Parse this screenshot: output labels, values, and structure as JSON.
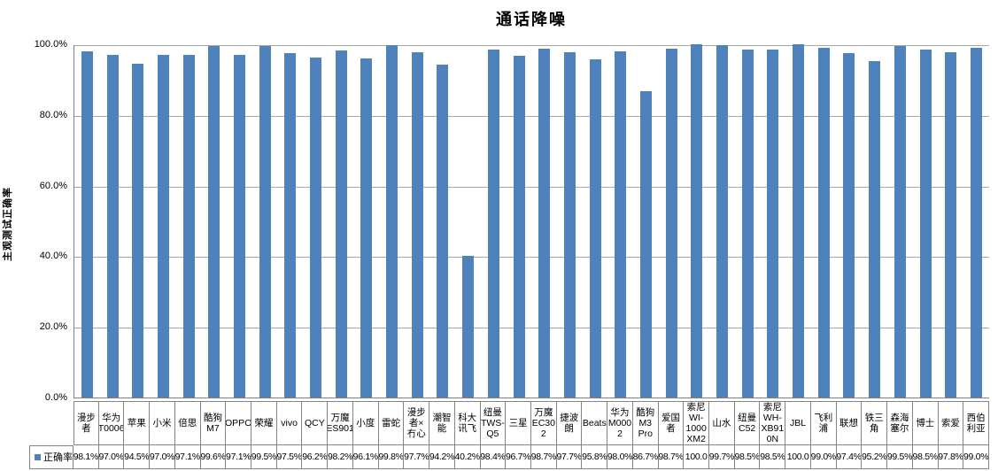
{
  "title": "通话降噪",
  "y_axis": {
    "title": "主观测试正确率",
    "tick_labels": [
      "100.0%",
      "80.0%",
      "60.0%",
      "40.0%",
      "20.0%",
      "0.0%"
    ]
  },
  "legend": {
    "series_label": "正确率"
  },
  "colors": {
    "bar": "#4f81bd",
    "gridline": "#a6a6a6",
    "axis_line": "#808080",
    "table_border": "#858585",
    "text": "#000000"
  },
  "chart_data": {
    "type": "bar",
    "title": "通话降噪",
    "xlabel": "",
    "ylabel": "主观测试正确率",
    "ylim": [
      0,
      100
    ],
    "y_tick_step": 20,
    "y_tick_format": "percent",
    "grid": true,
    "legend_position": "data-table-bottom-left",
    "categories": [
      "漫步者",
      "华为T0006",
      "苹果",
      "小米",
      "倍思",
      "酷狗M7",
      "OPPO",
      "荣耀",
      "vivo",
      "QCY",
      "万魔ES901",
      "小度",
      "雷蛇",
      "漫步者×冇心",
      "潮智能",
      "科大讯飞",
      "纽曼TWS-Q5",
      "三星",
      "万魔EC302",
      "捷波朗",
      "Beats",
      "华为M0002",
      "酷狗M3 Pro",
      "爱国者",
      "索尼WI-1000XM2",
      "山水",
      "纽曼C52",
      "索尼WH-XB910N",
      "JBL",
      "飞利浦",
      "联想",
      "铁三角",
      "森海塞尔",
      "博士",
      "索爱",
      "西伯利亚"
    ],
    "series": [
      {
        "name": "正确率",
        "values": [
          98.1,
          97.0,
          94.5,
          97.0,
          97.1,
          99.6,
          97.1,
          99.5,
          97.5,
          96.2,
          98.2,
          96.1,
          99.8,
          97.7,
          94.2,
          40.2,
          98.4,
          96.7,
          98.7,
          97.7,
          95.8,
          98.0,
          86.7,
          98.7,
          100.0,
          99.7,
          98.5,
          98.5,
          100.0,
          99.0,
          97.4,
          95.2,
          99.5,
          98.5,
          97.8,
          99.0
        ]
      }
    ]
  },
  "table": {
    "header_labels_display": [
      "漫步\n者",
      "华为\nT0006",
      "苹果",
      "小米",
      "倍思",
      "酷狗\nM7",
      "OPPO",
      "荣耀",
      "vivo",
      "QCY",
      "万魔\nES901",
      "小度",
      "雷蛇",
      "漫步\n者×\n冇心",
      "潮智\n能",
      "科大\n讯飞",
      "纽曼\nTWS-\nQ5",
      "三星",
      "万魔\nEC30\n2",
      "捷波\n朗",
      "Beats",
      "华为\nM000\n2",
      "酷狗\nM3\nPro",
      "爱国\n者",
      "索尼\nWI-\n1000\nXM2",
      "山水",
      "纽曼\nC52",
      "索尼\nWH-\nXB91\n0N",
      "JBL",
      "飞利\n浦",
      "联想",
      "铁三\n角",
      "森海\n塞尔",
      "博士",
      "索爱",
      "西伯\n利亚"
    ],
    "values_display": [
      "98.1%",
      "97.0%",
      "94.5%",
      "97.0%",
      "97.1%",
      "99.6%",
      "97.1%",
      "99.5%",
      "97.5%",
      "96.2%",
      "98.2%",
      "96.1%",
      "99.8%",
      "97.7%",
      "94.2%",
      "40.2%",
      "98.4%",
      "96.7%",
      "98.7%",
      "97.7%",
      "95.8%",
      "98.0%",
      "86.7%",
      "98.7%",
      "100.0",
      "99.7%",
      "98.5%",
      "98.5%",
      "100.0",
      "99.0%",
      "97.4%",
      "95.2%",
      "99.5%",
      "98.5%",
      "97.8%",
      "99.0%"
    ]
  }
}
